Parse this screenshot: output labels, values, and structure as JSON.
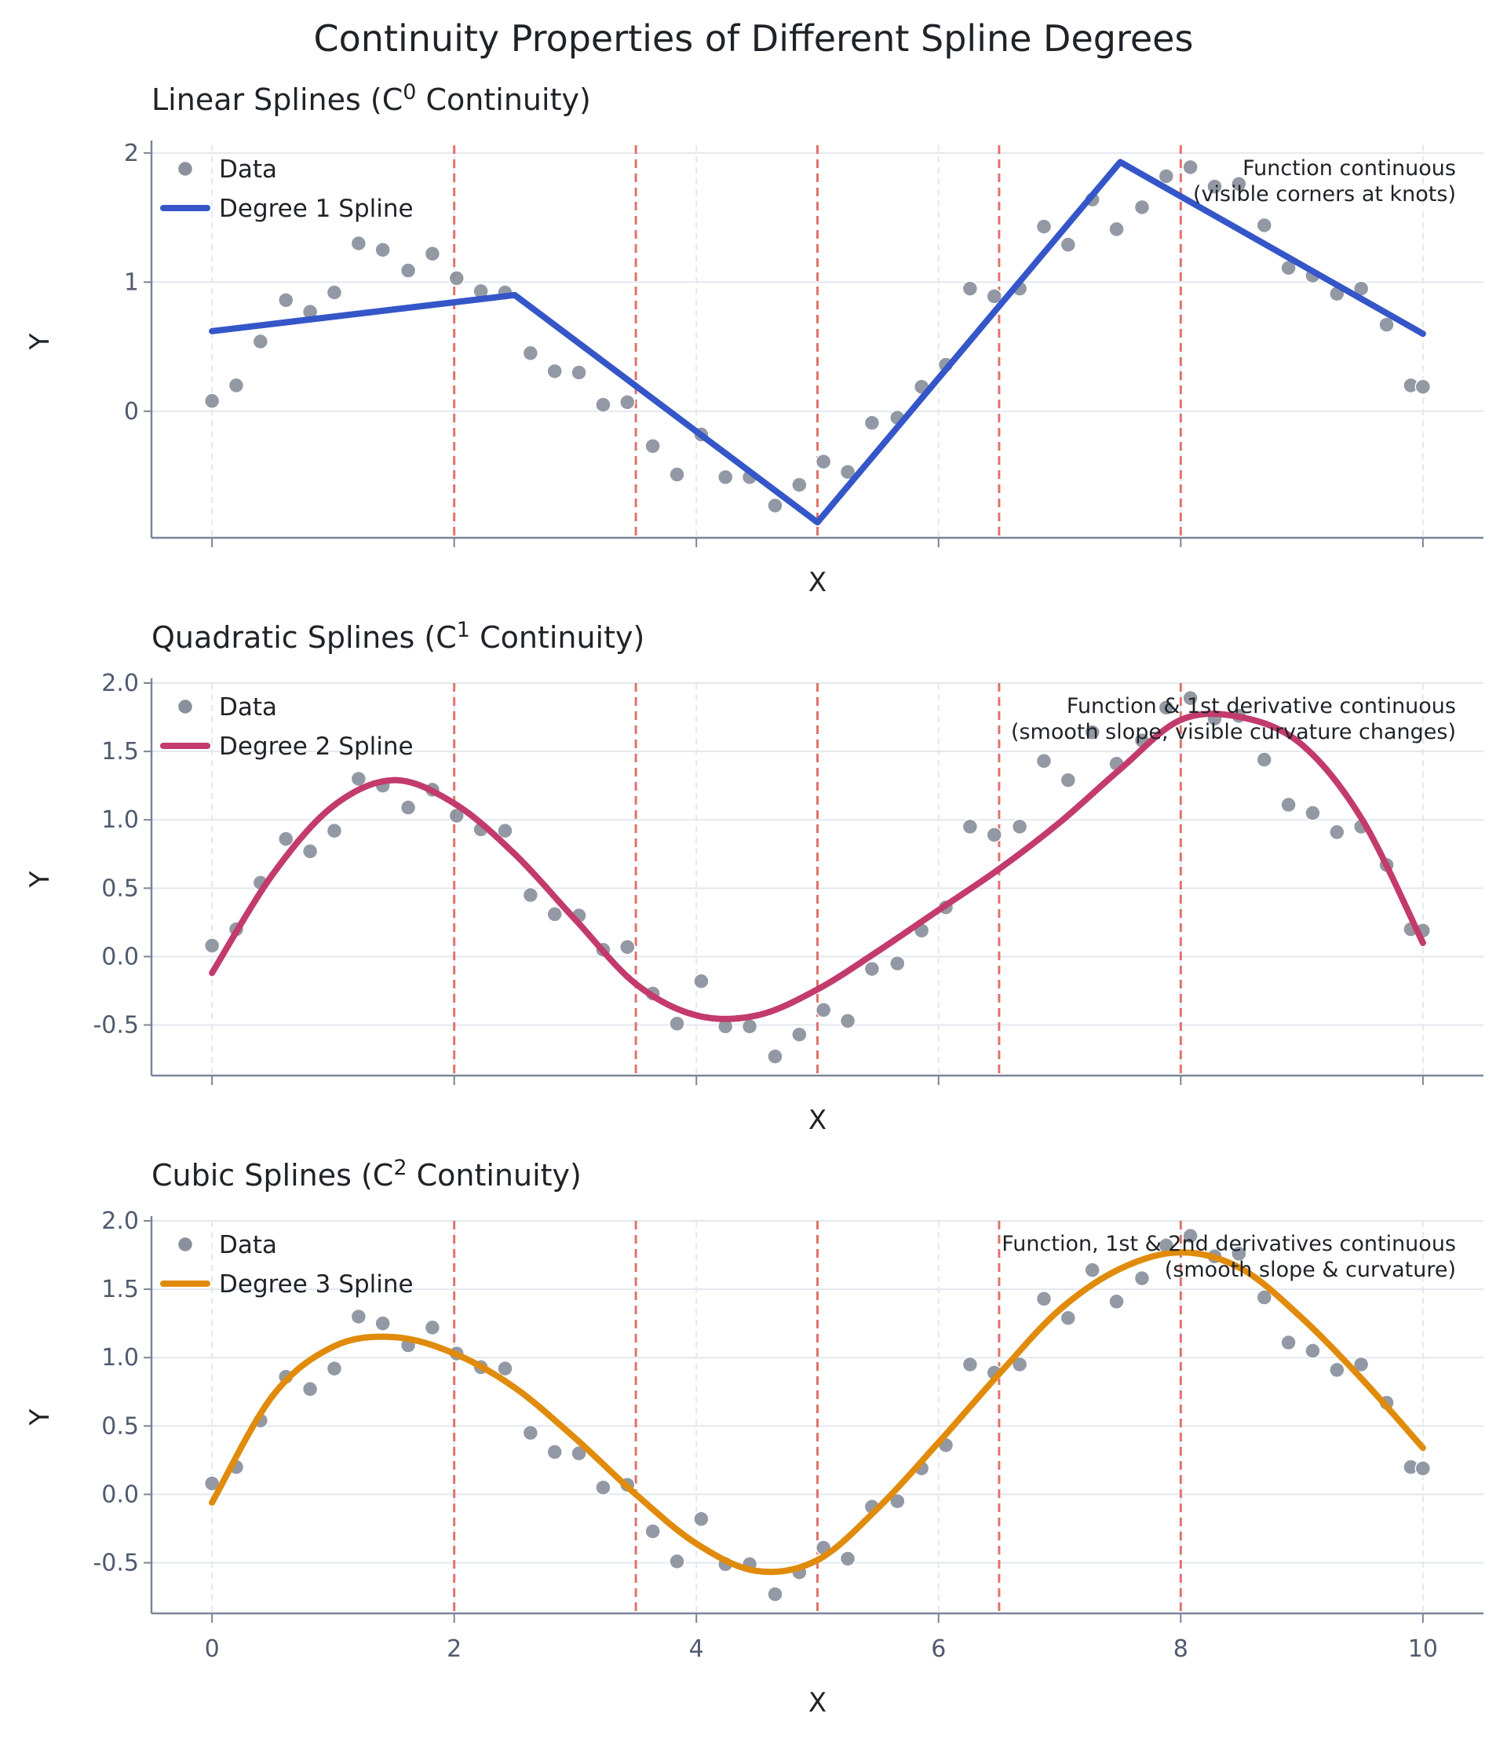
{
  "figure": {
    "title": "Continuity Properties of Different Spline Degrees"
  },
  "colors": {
    "linear": "#3556c8",
    "quadratic": "#c23b6c",
    "cubic": "#e08b0b",
    "data": "#8a909c",
    "knot": "#e0736c",
    "grid": "#e3e8ee",
    "axis": "#7a8597"
  },
  "chart_data": [
    {
      "type": "line",
      "title_main": "Linear Splines (C",
      "title_sup": "0",
      "title_end": " Continuity)",
      "xlabel": "X",
      "ylabel": "Y",
      "xlim": [
        -0.5,
        10.5
      ],
      "ylim": [
        -0.98,
        2.06
      ],
      "xticks": [
        0,
        2,
        4,
        6,
        8,
        10
      ],
      "xtick_labels": [],
      "yticks": [
        0,
        1,
        2
      ],
      "ytick_labels": [
        "0",
        "1",
        "2"
      ],
      "knots": [
        2,
        3.5,
        5,
        6.5,
        8
      ],
      "legend": {
        "position": "top-left",
        "entries": [
          "Data",
          "Degree 1 Spline"
        ]
      },
      "annotation": [
        "Function continuous",
        "(visible corners at knots)"
      ],
      "spline": {
        "name": "Degree 1 Spline",
        "color": "#3556c8",
        "x": [
          0,
          2.5,
          5,
          7.5,
          10
        ],
        "y": [
          0.62,
          0.9,
          -0.86,
          1.93,
          0.6
        ]
      }
    },
    {
      "type": "line",
      "title_main": "Quadratic Splines (C",
      "title_sup": "1",
      "title_end": " Continuity)",
      "xlabel": "X",
      "ylabel": "Y",
      "xlim": [
        -0.5,
        10.5
      ],
      "ylim": [
        -0.87,
        2.0
      ],
      "xticks": [
        0,
        2,
        4,
        6,
        8,
        10
      ],
      "xtick_labels": [],
      "yticks": [
        -0.5,
        0.0,
        0.5,
        1.0,
        1.5,
        2.0
      ],
      "ytick_labels": [
        "-0.5",
        "0.0",
        "0.5",
        "1.0",
        "1.5",
        "2.0"
      ],
      "knots": [
        2,
        3.5,
        5,
        6.5,
        8
      ],
      "legend": {
        "position": "top-left",
        "entries": [
          "Data",
          "Degree 2 Spline"
        ]
      },
      "annotation": [
        "Function & 1st derivative continuous",
        "(smooth slope, visible curvature changes)"
      ],
      "spline": {
        "name": "Degree 2 Spline",
        "color": "#c23b6c",
        "x": [
          0,
          0.5,
          1,
          1.5,
          2,
          2.5,
          3,
          3.5,
          4,
          4.5,
          5,
          5.5,
          6,
          6.5,
          7,
          7.5,
          8,
          8.5,
          9,
          9.5,
          10
        ],
        "y": [
          -0.12,
          0.6,
          1.1,
          1.29,
          1.12,
          0.75,
          0.27,
          -0.2,
          -0.43,
          -0.43,
          -0.24,
          0.04,
          0.34,
          0.64,
          0.98,
          1.37,
          1.73,
          1.75,
          1.55,
          1.0,
          0.1
        ]
      }
    },
    {
      "type": "line",
      "title_main": "Cubic Splines (C",
      "title_sup": "2",
      "title_end": " Continuity)",
      "xlabel": "X",
      "ylabel": "Y",
      "xlim": [
        -0.5,
        10.5
      ],
      "ylim": [
        -0.87,
        2.0
      ],
      "xticks": [
        0,
        2,
        4,
        6,
        8,
        10
      ],
      "xtick_labels": [
        "0",
        "2",
        "4",
        "6",
        "8",
        "10"
      ],
      "yticks": [
        -0.5,
        0.0,
        0.5,
        1.0,
        1.5,
        2.0
      ],
      "ytick_labels": [
        "-0.5",
        "0.0",
        "0.5",
        "1.0",
        "1.5",
        "2.0"
      ],
      "knots": [
        2,
        3.5,
        5,
        6.5,
        8
      ],
      "legend": {
        "position": "top-left",
        "entries": [
          "Data",
          "Degree 3 Spline"
        ]
      },
      "annotation": [
        "Function, 1st & 2nd derivatives continuous",
        "(smooth slope & curvature)"
      ],
      "spline": {
        "name": "Degree 3 Spline",
        "color": "#e08b0b",
        "x": [
          0,
          0.5,
          1,
          1.5,
          2,
          2.5,
          3,
          3.5,
          4,
          4.5,
          5,
          5.5,
          6,
          6.5,
          7,
          7.5,
          8,
          8.5,
          9,
          9.5,
          10
        ],
        "y": [
          -0.06,
          0.72,
          1.08,
          1.15,
          1.03,
          0.78,
          0.41,
          0.0,
          -0.36,
          -0.56,
          -0.48,
          -0.1,
          0.38,
          0.88,
          1.35,
          1.65,
          1.77,
          1.65,
          1.29,
          0.84,
          0.34
        ]
      }
    }
  ],
  "scatter": {
    "name": "Data",
    "x": [
      0,
      0.2,
      0.4,
      0.61,
      0.81,
      1.01,
      1.21,
      1.41,
      1.62,
      1.82,
      2.02,
      2.22,
      2.42,
      2.63,
      2.83,
      3.03,
      3.23,
      3.43,
      3.64,
      3.84,
      4.04,
      4.24,
      4.44,
      4.65,
      4.85,
      5.05,
      5.25,
      5.45,
      5.66,
      5.86,
      6.06,
      6.26,
      6.46,
      6.67,
      6.87,
      7.07,
      7.27,
      7.47,
      7.68,
      7.88,
      8.08,
      8.28,
      8.48,
      8.69,
      8.89,
      9.09,
      9.29,
      9.49,
      9.7,
      9.9,
      10
    ],
    "y": [
      0.08,
      0.2,
      0.54,
      0.86,
      0.77,
      0.92,
      1.3,
      1.25,
      1.09,
      1.22,
      1.03,
      0.93,
      0.92,
      0.45,
      0.31,
      0.3,
      0.05,
      0.07,
      -0.27,
      -0.49,
      -0.18,
      -0.51,
      -0.51,
      -0.73,
      -0.57,
      -0.39,
      -0.47,
      -0.09,
      -0.05,
      0.19,
      0.36,
      0.95,
      0.89,
      0.95,
      1.43,
      1.29,
      1.64,
      1.41,
      1.58,
      1.82,
      1.89,
      1.74,
      1.76,
      1.44,
      1.11,
      1.05,
      0.91,
      0.95,
      0.67,
      0.2,
      0.19
    ]
  }
}
